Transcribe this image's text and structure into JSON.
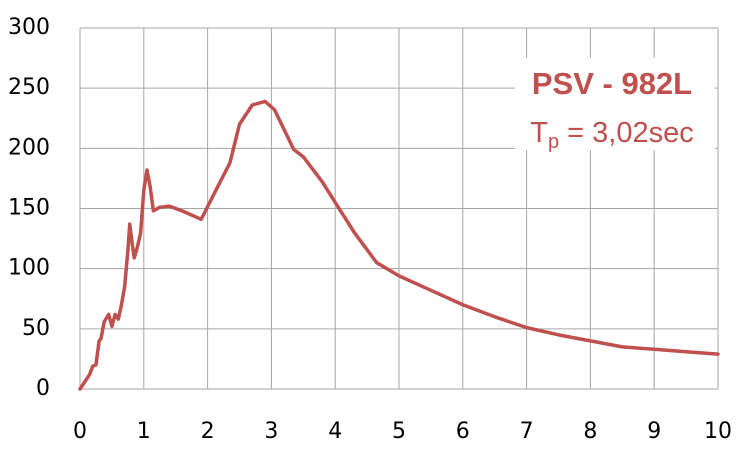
{
  "chart_data": {
    "type": "line",
    "annotation_title": "PSV - 982L",
    "annotation_period": {
      "symbol": "T",
      "subscript": "p",
      "text": " = 3,02sec"
    },
    "x": [
      0,
      0.1,
      0.15,
      0.2,
      0.25,
      0.3,
      0.33,
      0.38,
      0.45,
      0.5,
      0.55,
      0.6,
      0.65,
      0.7,
      0.75,
      0.78,
      0.82,
      0.85,
      0.9,
      0.95,
      1.0,
      1.05,
      1.1,
      1.15,
      1.25,
      1.4,
      1.6,
      1.9,
      2.1,
      2.35,
      2.5,
      2.7,
      2.9,
      3.05,
      3.35,
      3.5,
      3.8,
      4.0,
      4.3,
      4.65,
      5.0,
      5.5,
      6.0,
      6.5,
      7.0,
      7.5,
      8.0,
      8.5,
      9.0,
      9.5,
      10
    ],
    "values": [
      0,
      8,
      12,
      19,
      20,
      40,
      42,
      56,
      62,
      52,
      62,
      58,
      70,
      85,
      115,
      137,
      120,
      109,
      118,
      130,
      165,
      182,
      168,
      148,
      151,
      152,
      148,
      141,
      162,
      188,
      220,
      236,
      239,
      232,
      199,
      193,
      172,
      155,
      130,
      105,
      94,
      82,
      70,
      60,
      51,
      45,
      40,
      35,
      33,
      31,
      29
    ],
    "color": "#c0504d",
    "xlim": [
      0,
      10
    ],
    "xticks": [
      0,
      1,
      2,
      3,
      4,
      5,
      6,
      7,
      8,
      9,
      10
    ],
    "ylim": [
      0,
      300
    ],
    "yticks": [
      0,
      50,
      100,
      150,
      200,
      250,
      300
    ],
    "grid": true
  }
}
